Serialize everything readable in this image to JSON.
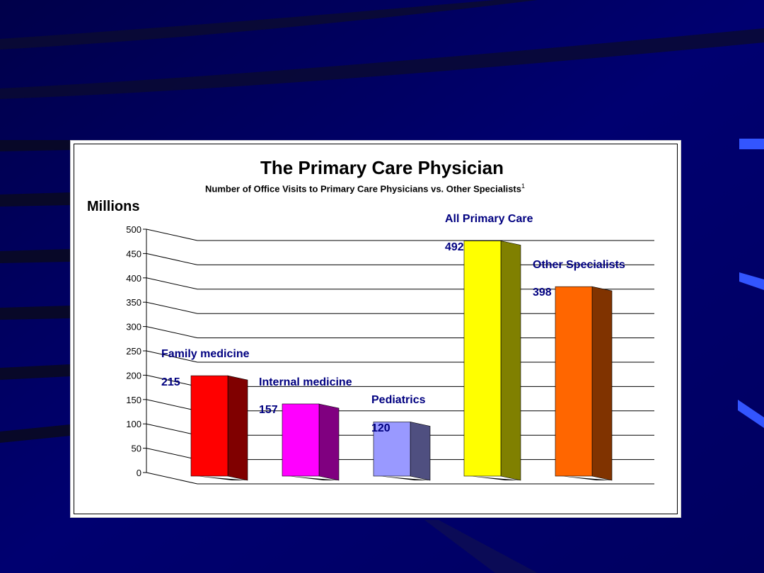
{
  "colors": {
    "background": "#000066",
    "label": "#000080"
  },
  "chart_data": {
    "type": "bar",
    "title": "The Primary Care Physician",
    "subtitle": "Number of Office Visits to Primary Care Physicians vs. Other Specialists",
    "subtitle_footnote": "1",
    "ylabel": "Millions",
    "ylim": [
      0,
      500
    ],
    "yticks": [
      0,
      50,
      100,
      150,
      200,
      250,
      300,
      350,
      400,
      450,
      500
    ],
    "grid": true,
    "categories": [
      "Family medicine",
      "Internal medicine",
      "Pediatrics",
      "All Primary Care",
      "Other Specialists"
    ],
    "values": [
      215,
      157,
      120,
      492,
      398
    ],
    "value_labels": [
      "215",
      "157",
      "120",
      "492",
      "398"
    ],
    "bar_colors": [
      {
        "front": "#ff0000",
        "side": "#800000"
      },
      {
        "front": "#ff00ff",
        "side": "#800080"
      },
      {
        "front": "#9999ff",
        "side": "#4f4f80"
      },
      {
        "front": "#ffff00",
        "side": "#808000"
      },
      {
        "front": "#ff6600",
        "side": "#803300"
      }
    ]
  }
}
